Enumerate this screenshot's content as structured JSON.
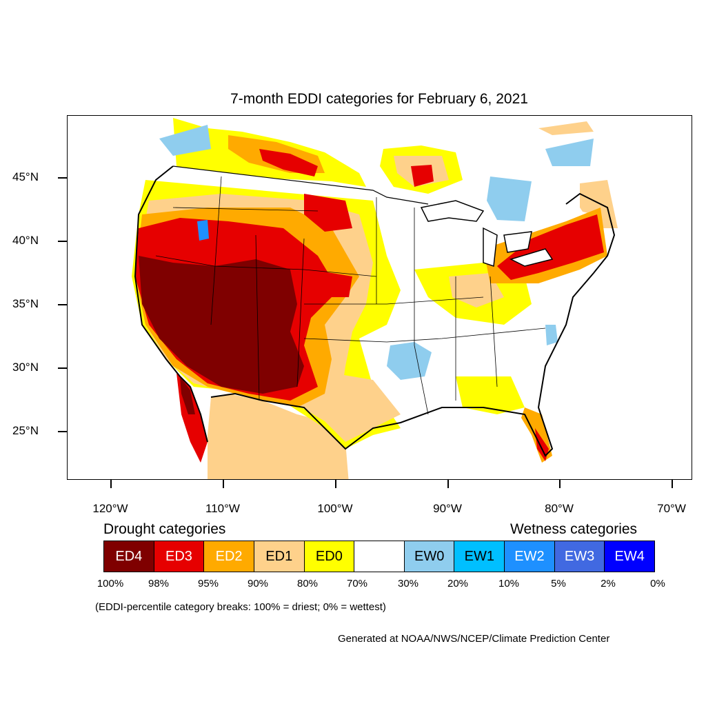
{
  "title": "7-month EDDI categories for February 6, 2021",
  "axes": {
    "lat_labels": [
      "45°N",
      "40°N",
      "35°N",
      "30°N",
      "25°N"
    ],
    "lon_labels": [
      "120°W",
      "110°W",
      "100°W",
      "90°W",
      "80°W",
      "70°W"
    ]
  },
  "legend": {
    "drought_heading": "Drought categories",
    "wetness_heading": "Wetness categories",
    "categories": [
      {
        "label": "ED4",
        "color": "#7f0000",
        "text_color": "#ffffff"
      },
      {
        "label": "ED3",
        "color": "#e60000",
        "text_color": "#ffffff"
      },
      {
        "label": "ED2",
        "color": "#ffaa00",
        "text_color": "#ffffff"
      },
      {
        "label": "ED1",
        "color": "#fed18b",
        "text_color": "#000000"
      },
      {
        "label": "ED0",
        "color": "#ffff00",
        "text_color": "#000000"
      },
      {
        "label": "",
        "color": "#ffffff",
        "text_color": "#000000"
      },
      {
        "label": "EW0",
        "color": "#8fcdee",
        "text_color": "#000000"
      },
      {
        "label": "EW1",
        "color": "#00bfff",
        "text_color": "#000000"
      },
      {
        "label": "EW2",
        "color": "#1e90ff",
        "text_color": "#ffffff"
      },
      {
        "label": "EW3",
        "color": "#4169e1",
        "text_color": "#ffffff"
      },
      {
        "label": "EW4",
        "color": "#0000ff",
        "text_color": "#ffffff"
      }
    ],
    "breaks": [
      "100%",
      "98%",
      "95%",
      "90%",
      "80%",
      "70%",
      "30%",
      "20%",
      "10%",
      "5%",
      "2%",
      "0%"
    ]
  },
  "note": "(EDDI-percentile category breaks: 100% = driest; 0% = wettest)",
  "credit": "Generated at NOAA/NWS/NCEP/Climate Prediction Center"
}
